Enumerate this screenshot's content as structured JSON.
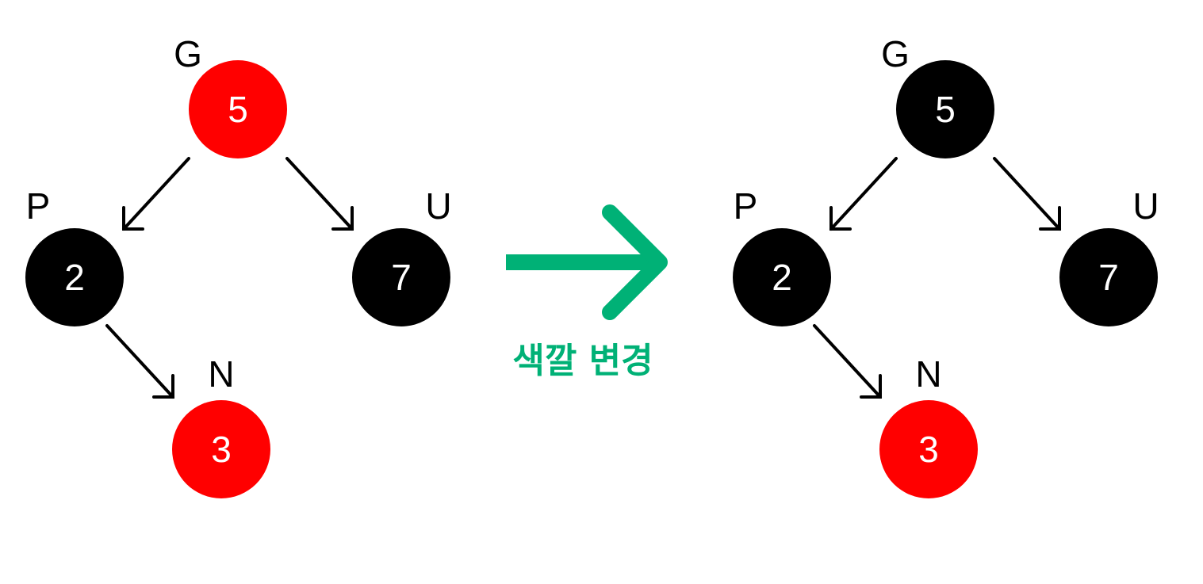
{
  "colors": {
    "red": "#ff0000",
    "black": "#000000",
    "accent": "#00b176"
  },
  "before": {
    "G": {
      "tag": "G",
      "value": "5",
      "color": "red"
    },
    "P": {
      "tag": "P",
      "value": "2",
      "color": "black"
    },
    "U": {
      "tag": "U",
      "value": "7",
      "color": "black"
    },
    "N": {
      "tag": "N",
      "value": "3",
      "color": "red"
    }
  },
  "transition": {
    "caption": "색깔 변경",
    "icon": "right-arrow-icon"
  },
  "after": {
    "G": {
      "tag": "G",
      "value": "5",
      "color": "black"
    },
    "P": {
      "tag": "P",
      "value": "2",
      "color": "black"
    },
    "U": {
      "tag": "U",
      "value": "7",
      "color": "black"
    },
    "N": {
      "tag": "N",
      "value": "3",
      "color": "red"
    }
  }
}
